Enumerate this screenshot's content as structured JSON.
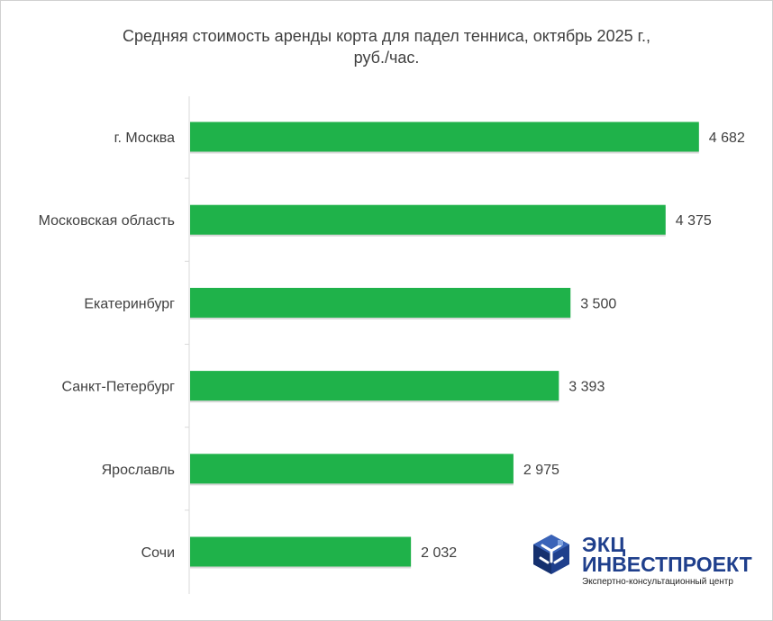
{
  "chart_data": {
    "type": "bar",
    "orientation": "horizontal",
    "title_line1": "Средняя стоимость аренды корта для падел тенниса,  октябрь 2025 г.,",
    "title_line2": "руб./час.",
    "categories": [
      "г. Москва",
      "Московская область",
      "Екатеринбург",
      "Санкт-Петербург",
      "Ярославль",
      "Сочи"
    ],
    "values": [
      4682,
      4375,
      3500,
      3393,
      2975,
      2032
    ],
    "value_labels": [
      "4 682",
      "4 375",
      "3 500",
      "3 393",
      "2 975",
      "2 032"
    ],
    "xlim": [
      0,
      4750
    ],
    "bar_color": "#1fb24a",
    "grid": false,
    "legend": "none"
  },
  "logo": {
    "line1": "ЭКЦ",
    "line2": "ИНВЕСТПРОЕКТ",
    "line3": "Экспертно-консультационный центр",
    "color": "#1f3f8c"
  }
}
